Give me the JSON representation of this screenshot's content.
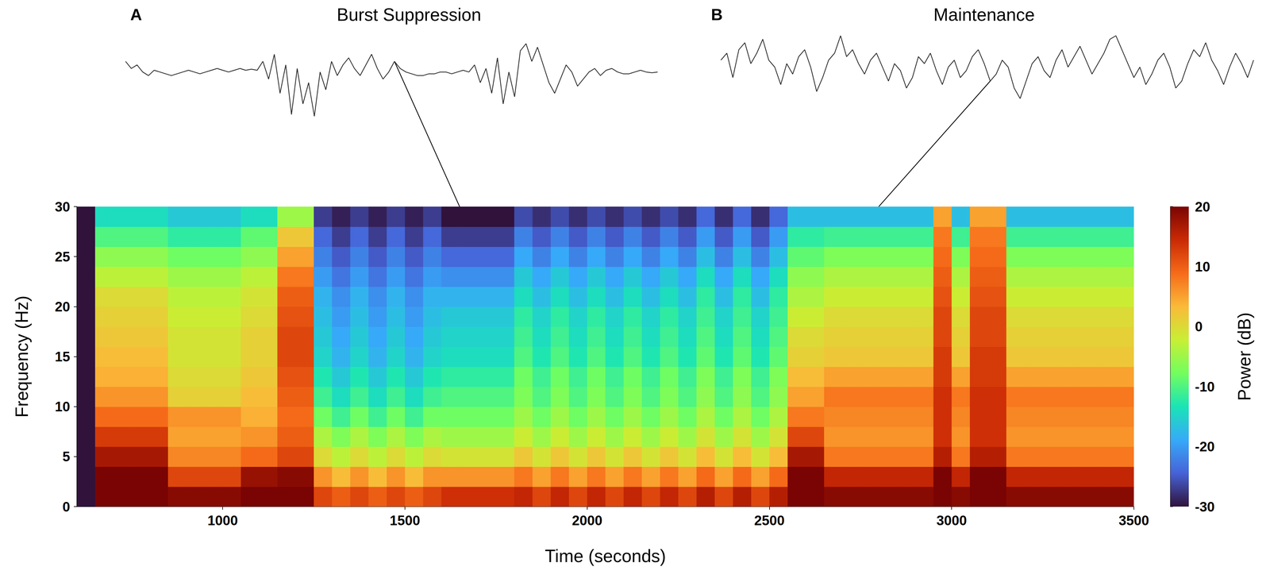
{
  "chart_data": {
    "type": "heatmap",
    "xlabel": "Time (seconds)",
    "ylabel": "Frequency (Hz)",
    "xlim": [
      600,
      3500
    ],
    "xticks": [
      1000,
      1500,
      2000,
      2500,
      3000,
      3500
    ],
    "ylim": [
      0,
      30
    ],
    "yticks": [
      0,
      5,
      10,
      15,
      20,
      25,
      30
    ],
    "time_edges": [
      600,
      650,
      700,
      750,
      800,
      850,
      900,
      950,
      1000,
      1050,
      1100,
      1150,
      1200,
      1250,
      1300,
      1350,
      1400,
      1450,
      1500,
      1550,
      1600,
      1650,
      1700,
      1750,
      1800,
      1850,
      1900,
      1950,
      2000,
      2050,
      2100,
      2150,
      2200,
      2250,
      2300,
      2350,
      2400,
      2450,
      2500,
      2550,
      2600,
      2650,
      2700,
      2750,
      2800,
      2850,
      2900,
      2950,
      3000,
      3050,
      3100,
      3150,
      3200,
      3250,
      3300,
      3350,
      3400,
      3450,
      3500
    ],
    "frequency_edges": [
      0,
      2,
      4,
      6,
      8,
      10,
      12,
      14,
      16,
      18,
      20,
      22,
      24,
      26,
      28,
      30
    ],
    "power": [
      [
        -30,
        -30,
        -30,
        -30,
        -30,
        -30,
        -30,
        -30,
        -30,
        -30,
        -30,
        -30,
        -30,
        -30,
        -30
      ],
      [
        20,
        20,
        17,
        13,
        9,
        6,
        4,
        3,
        2,
        1,
        0,
        -3,
        -6,
        -10,
        -14
      ],
      [
        20,
        20,
        17,
        13,
        9,
        6,
        4,
        3,
        2,
        1,
        0,
        -3,
        -6,
        -10,
        -14
      ],
      [
        20,
        20,
        17,
        13,
        9,
        6,
        4,
        3,
        2,
        1,
        0,
        -3,
        -6,
        -10,
        -14
      ],
      [
        20,
        20,
        17,
        13,
        9,
        6,
        4,
        3,
        2,
        1,
        0,
        -3,
        -6,
        -10,
        -14
      ],
      [
        19,
        12,
        7,
        5,
        6,
        1,
        0,
        -1,
        -1,
        -2,
        -3,
        -5,
        -8,
        -12,
        -16
      ],
      [
        19,
        12,
        7,
        5,
        6,
        1,
        0,
        -1,
        -1,
        -2,
        -3,
        -5,
        -8,
        -12,
        -16
      ],
      [
        19,
        12,
        7,
        5,
        6,
        1,
        0,
        -1,
        -1,
        -2,
        -3,
        -5,
        -8,
        -12,
        -16
      ],
      [
        19,
        12,
        7,
        5,
        6,
        1,
        0,
        -1,
        -1,
        -2,
        -3,
        -5,
        -8,
        -12,
        -16
      ],
      [
        20,
        18,
        9,
        6,
        4,
        3,
        2,
        1,
        1,
        0,
        -1,
        -3,
        -6,
        -9,
        -14
      ],
      [
        20,
        18,
        9,
        6,
        4,
        3,
        2,
        1,
        1,
        0,
        -1,
        -3,
        -6,
        -9,
        -14
      ],
      [
        20,
        19,
        12,
        10,
        9,
        10,
        11,
        12,
        12,
        11,
        10,
        8,
        5,
        2,
        -5
      ],
      [
        20,
        19,
        12,
        10,
        9,
        10,
        11,
        12,
        12,
        11,
        10,
        8,
        5,
        2,
        -5
      ],
      [
        12,
        6,
        0,
        -4,
        -8,
        -11,
        -13,
        -15,
        -16,
        -17,
        -18,
        -20,
        -22,
        -24,
        -27
      ],
      [
        10,
        3,
        -3,
        -7,
        -11,
        -14,
        -16,
        -18,
        -19,
        -20,
        -21,
        -23,
        -25,
        -27,
        -29
      ],
      [
        12,
        6,
        0,
        -4,
        -8,
        -11,
        -13,
        -15,
        -16,
        -17,
        -18,
        -20,
        -22,
        -24,
        -27
      ],
      [
        10,
        3,
        -3,
        -7,
        -11,
        -14,
        -16,
        -18,
        -19,
        -20,
        -21,
        -23,
        -25,
        -27,
        -29
      ],
      [
        12,
        6,
        0,
        -4,
        -8,
        -11,
        -13,
        -15,
        -16,
        -17,
        -18,
        -20,
        -22,
        -24,
        -27
      ],
      [
        10,
        3,
        -3,
        -7,
        -11,
        -14,
        -16,
        -18,
        -19,
        -20,
        -21,
        -23,
        -25,
        -27,
        -29
      ],
      [
        12,
        6,
        0,
        -4,
        -8,
        -11,
        -13,
        -15,
        -16,
        -17,
        -18,
        -20,
        -22,
        -24,
        -27
      ],
      [
        14,
        6,
        -1,
        -5,
        -8,
        -10,
        -12,
        -14,
        -15,
        -16,
        -18,
        -21,
        -24,
        -27,
        -30
      ],
      [
        14,
        6,
        -1,
        -5,
        -8,
        -10,
        -12,
        -14,
        -15,
        -16,
        -18,
        -21,
        -24,
        -27,
        -30
      ],
      [
        14,
        6,
        -1,
        -5,
        -8,
        -10,
        -12,
        -14,
        -15,
        -16,
        -18,
        -21,
        -24,
        -27,
        -30
      ],
      [
        14,
        6,
        -1,
        -5,
        -8,
        -10,
        -12,
        -14,
        -15,
        -16,
        -18,
        -21,
        -24,
        -27,
        -30
      ],
      [
        15,
        8,
        2,
        -2,
        -5,
        -7,
        -8,
        -10,
        -11,
        -12,
        -14,
        -16,
        -19,
        -22,
        -26
      ],
      [
        12,
        5,
        -1,
        -5,
        -8,
        -10,
        -11,
        -13,
        -14,
        -15,
        -17,
        -19,
        -22,
        -25,
        -28
      ],
      [
        15,
        8,
        2,
        -2,
        -5,
        -7,
        -8,
        -10,
        -11,
        -12,
        -14,
        -16,
        -19,
        -22,
        -26
      ],
      [
        12,
        5,
        -1,
        -5,
        -8,
        -10,
        -11,
        -13,
        -14,
        -15,
        -17,
        -19,
        -22,
        -25,
        -28
      ],
      [
        15,
        8,
        2,
        -2,
        -5,
        -7,
        -8,
        -10,
        -11,
        -12,
        -14,
        -16,
        -19,
        -22,
        -26
      ],
      [
        12,
        5,
        -1,
        -5,
        -8,
        -10,
        -11,
        -13,
        -14,
        -15,
        -17,
        -19,
        -22,
        -25,
        -28
      ],
      [
        15,
        8,
        2,
        -2,
        -5,
        -7,
        -8,
        -10,
        -11,
        -12,
        -14,
        -16,
        -19,
        -22,
        -26
      ],
      [
        12,
        5,
        -1,
        -5,
        -8,
        -10,
        -11,
        -13,
        -14,
        -15,
        -17,
        -19,
        -22,
        -25,
        -28
      ],
      [
        15,
        8,
        2,
        -2,
        -5,
        -7,
        -8,
        -10,
        -11,
        -12,
        -14,
        -16,
        -19,
        -22,
        -26
      ],
      [
        12,
        5,
        -1,
        -5,
        -8,
        -10,
        -11,
        -13,
        -14,
        -15,
        -17,
        -19,
        -22,
        -25,
        -28
      ],
      [
        16,
        9,
        3,
        -1,
        -4,
        -6,
        -7,
        -9,
        -10,
        -11,
        -12,
        -14,
        -17,
        -20,
        -24
      ],
      [
        12,
        5,
        -1,
        -5,
        -8,
        -10,
        -11,
        -13,
        -14,
        -15,
        -17,
        -19,
        -22,
        -25,
        -28
      ],
      [
        16,
        9,
        3,
        -1,
        -4,
        -6,
        -7,
        -9,
        -10,
        -11,
        -12,
        -14,
        -17,
        -20,
        -24
      ],
      [
        12,
        5,
        -1,
        -5,
        -8,
        -10,
        -11,
        -13,
        -14,
        -15,
        -17,
        -19,
        -22,
        -25,
        -28
      ],
      [
        16,
        9,
        3,
        -1,
        -4,
        -6,
        -7,
        -9,
        -10,
        -11,
        -12,
        -14,
        -17,
        -20,
        -24
      ],
      [
        20,
        20,
        17,
        12,
        8,
        5,
        3,
        1,
        0,
        -2,
        -4,
        -6,
        -9,
        -12,
        -17
      ],
      [
        20,
        20,
        17,
        12,
        8,
        5,
        3,
        1,
        0,
        -2,
        -4,
        -6,
        -9,
        -12,
        -17
      ],
      [
        19,
        15,
        8,
        6,
        7,
        8,
        5,
        2,
        1,
        0,
        -2,
        -4,
        -7,
        -11,
        -17
      ],
      [
        19,
        15,
        8,
        6,
        7,
        8,
        5,
        2,
        1,
        0,
        -2,
        -4,
        -7,
        -11,
        -17
      ],
      [
        19,
        15,
        8,
        6,
        7,
        8,
        5,
        2,
        1,
        0,
        -2,
        -4,
        -7,
        -11,
        -17
      ],
      [
        19,
        15,
        8,
        6,
        7,
        8,
        5,
        2,
        1,
        0,
        -2,
        -4,
        -7,
        -11,
        -17
      ],
      [
        19,
        15,
        8,
        6,
        7,
        8,
        5,
        2,
        1,
        0,
        -2,
        -4,
        -7,
        -11,
        -17
      ],
      [
        19,
        15,
        8,
        6,
        7,
        8,
        5,
        2,
        1,
        0,
        -2,
        -4,
        -7,
        -11,
        -17
      ],
      [
        20,
        20,
        16,
        14,
        14,
        14,
        13,
        13,
        12,
        12,
        11,
        10,
        9,
        8,
        5
      ],
      [
        19,
        15,
        8,
        6,
        7,
        8,
        5,
        2,
        1,
        0,
        -2,
        -4,
        -7,
        -11,
        -17
      ],
      [
        20,
        20,
        16,
        14,
        14,
        14,
        13,
        13,
        12,
        12,
        11,
        10,
        9,
        8,
        5
      ],
      [
        20,
        20,
        16,
        14,
        14,
        14,
        13,
        13,
        12,
        12,
        11,
        10,
        9,
        8,
        5
      ],
      [
        19,
        15,
        8,
        6,
        7,
        8,
        5,
        2,
        1,
        0,
        -2,
        -4,
        -7,
        -11,
        -17
      ],
      [
        19,
        15,
        8,
        6,
        7,
        8,
        5,
        2,
        1,
        0,
        -2,
        -4,
        -7,
        -11,
        -17
      ],
      [
        19,
        15,
        8,
        6,
        7,
        8,
        5,
        2,
        1,
        0,
        -2,
        -4,
        -7,
        -11,
        -17
      ],
      [
        19,
        15,
        8,
        6,
        7,
        8,
        5,
        2,
        1,
        0,
        -2,
        -4,
        -7,
        -11,
        -17
      ],
      [
        19,
        15,
        8,
        6,
        7,
        8,
        5,
        2,
        1,
        0,
        -2,
        -4,
        -7,
        -11,
        -17
      ],
      [
        19,
        15,
        8,
        6,
        7,
        8,
        5,
        2,
        1,
        0,
        -2,
        -4,
        -7,
        -11,
        -17
      ],
      [
        19,
        15,
        8,
        6,
        7,
        8,
        5,
        2,
        1,
        0,
        -2,
        -4,
        -7,
        -11,
        -17
      ]
    ],
    "colorbar": {
      "label": "Power (dB)",
      "range": [
        -30,
        20
      ],
      "ticks": [
        -30,
        -20,
        -10,
        0,
        10,
        20
      ]
    },
    "insets": [
      {
        "panel": "A",
        "title": "Burst Suppression",
        "time": 1650,
        "ylim": [
          -1.4,
          1.0
        ],
        "values": [
          0.3,
          0.1,
          0.2,
          0.0,
          -0.1,
          0.05,
          0.0,
          -0.05,
          -0.1,
          -0.05,
          0.0,
          0.05,
          0.0,
          -0.05,
          0.0,
          0.05,
          0.1,
          0.05,
          0.0,
          0.05,
          0.1,
          0.05,
          0.08,
          0.05,
          0.3,
          -0.2,
          0.5,
          -0.6,
          0.2,
          -1.2,
          0.1,
          -0.9,
          -0.3,
          -1.25,
          0.0,
          -0.5,
          0.3,
          -0.1,
          0.2,
          0.4,
          0.1,
          -0.1,
          0.2,
          0.5,
          0.1,
          -0.2,
          0.0,
          0.3,
          0.1,
          0.0,
          -0.05,
          -0.1,
          -0.1,
          -0.05,
          -0.05,
          0.0,
          0.0,
          -0.05,
          0.0,
          0.05,
          0.0,
          0.2,
          -0.3,
          0.1,
          -0.6,
          0.4,
          -0.9,
          0.0,
          -0.7,
          0.6,
          0.8,
          0.3,
          0.7,
          0.2,
          -0.3,
          -0.6,
          -0.2,
          0.2,
          0.0,
          -0.4,
          -0.2,
          0.0,
          0.1,
          -0.1,
          0.05,
          0.1,
          0.0,
          -0.05,
          -0.05,
          0.0,
          0.05,
          0.0,
          -0.02,
          0.0
        ]
      },
      {
        "panel": "B",
        "title": "Maintenance",
        "time": 2800,
        "ylim": [
          -1.0,
          1.1
        ],
        "values": [
          0.3,
          0.5,
          -0.2,
          0.6,
          0.8,
          0.2,
          0.5,
          0.9,
          0.3,
          0.1,
          -0.4,
          0.2,
          -0.1,
          0.4,
          0.6,
          0.1,
          -0.6,
          -0.2,
          0.3,
          0.5,
          1.0,
          0.4,
          0.6,
          0.2,
          -0.1,
          0.3,
          0.5,
          0.1,
          -0.3,
          0.2,
          0.0,
          -0.5,
          -0.2,
          0.4,
          0.2,
          0.5,
          0.0,
          -0.4,
          0.1,
          0.3,
          -0.2,
          0.0,
          0.4,
          0.6,
          0.2,
          -0.3,
          -0.1,
          0.3,
          0.1,
          -0.5,
          -0.8,
          -0.3,
          0.2,
          0.4,
          0.0,
          -0.2,
          0.3,
          0.6,
          0.1,
          0.4,
          0.7,
          0.3,
          -0.1,
          0.2,
          0.5,
          0.9,
          1.0,
          0.6,
          0.2,
          -0.2,
          0.1,
          -0.4,
          -0.1,
          0.3,
          0.5,
          0.1,
          -0.5,
          -0.3,
          0.2,
          0.6,
          0.4,
          0.8,
          0.3,
          0.0,
          -0.4,
          0.1,
          0.5,
          0.2,
          -0.2,
          0.3
        ]
      }
    ]
  }
}
